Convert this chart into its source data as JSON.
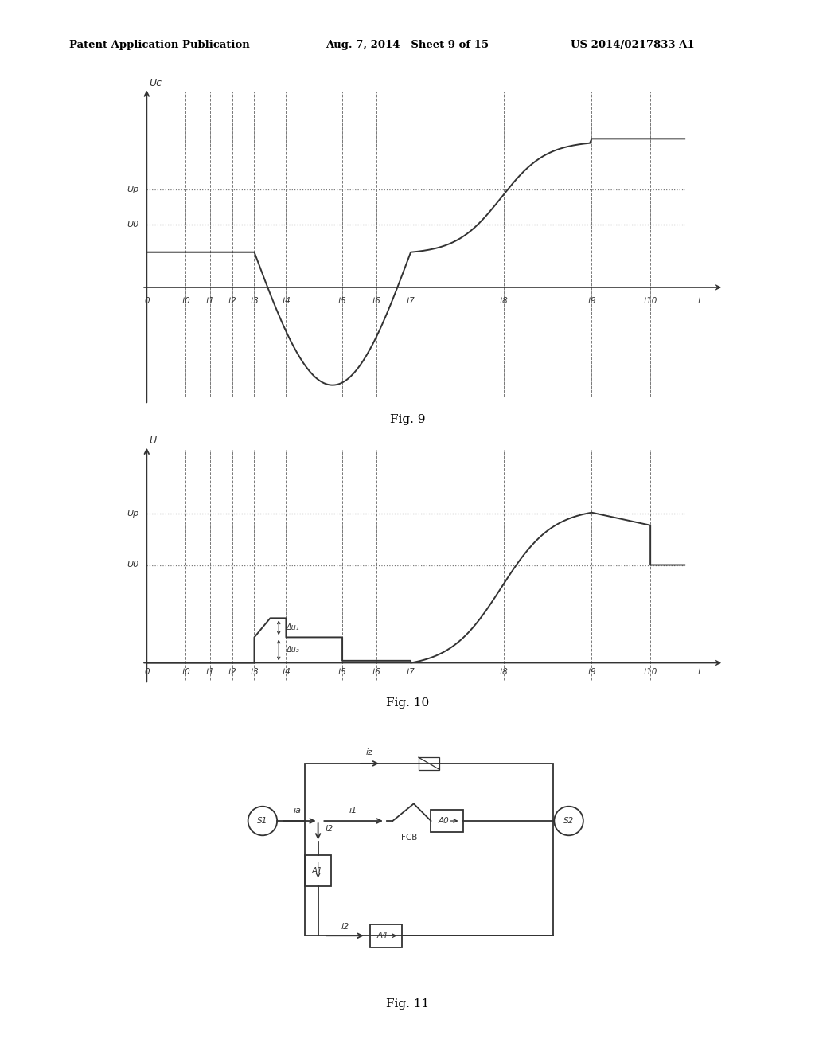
{
  "header_left": "Patent Application Publication",
  "header_mid": "Aug. 7, 2014   Sheet 9 of 15",
  "header_right": "US 2014/0217833 A1",
  "fig9_caption": "Fig. 9",
  "fig10_caption": "Fig. 10",
  "fig11_caption": "Fig. 11",
  "bg_color": "#ffffff",
  "line_color": "#333333",
  "dashed_color": "#777777",
  "t_positions": [
    0.5,
    1.3,
    1.8,
    2.25,
    2.7,
    3.35,
    4.5,
    5.2,
    5.9,
    7.8,
    9.6,
    10.8,
    11.8
  ],
  "t_labels": [
    "0",
    "t0",
    "t1",
    "t2",
    "t3",
    "t4",
    "t5",
    "t6",
    "t7",
    "t8",
    "t9",
    "t10",
    "t"
  ],
  "fig9_U0": 1.6,
  "fig9_Up": 2.5,
  "fig9_Uc_flat": 0.9,
  "fig9_Uc_peak": 3.8,
  "fig10_U0": 2.3,
  "fig10_Up": 3.5
}
